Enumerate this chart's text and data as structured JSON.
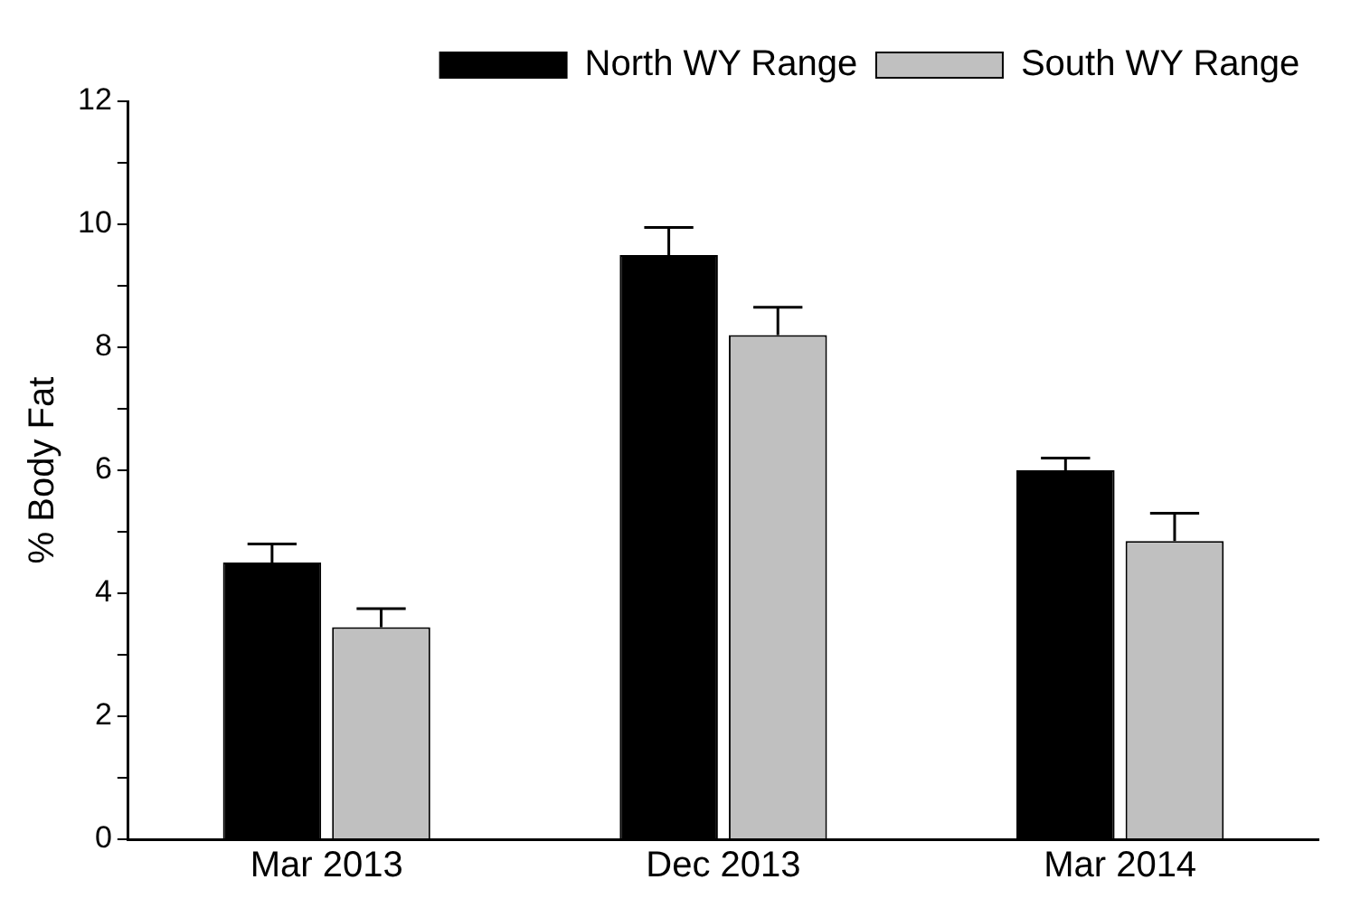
{
  "chart_data": {
    "type": "bar",
    "ylabel": "% Body Fat",
    "categories": [
      "Mar 2013",
      "Dec 2013",
      "Mar 2014"
    ],
    "series": [
      {
        "name": "North WY Range",
        "color": "#000000",
        "values": [
          4.5,
          9.5,
          6.0
        ],
        "errors": [
          [
            4.5,
            4.8
          ],
          [
            9.5,
            9.95
          ],
          [
            6.0,
            6.2
          ]
        ]
      },
      {
        "name": "South WY Range",
        "color": "#c0c0c0",
        "values": [
          3.45,
          8.2,
          4.85
        ],
        "errors": [
          [
            3.45,
            3.75
          ],
          [
            8.2,
            8.65
          ],
          [
            4.85,
            5.3
          ]
        ]
      }
    ],
    "ylim": [
      0,
      12
    ],
    "yticks": [
      0,
      {
        "value": 1,
        "label": null
      },
      2,
      {
        "value": 3,
        "label": null
      },
      4,
      {
        "value": 5,
        "label": null
      },
      6,
      {
        "value": 7,
        "label": null
      },
      8,
      {
        "value": 9,
        "label": null
      },
      10,
      {
        "value": 11,
        "label": null
      },
      12
    ],
    "grid": false,
    "legend": "top right"
  }
}
